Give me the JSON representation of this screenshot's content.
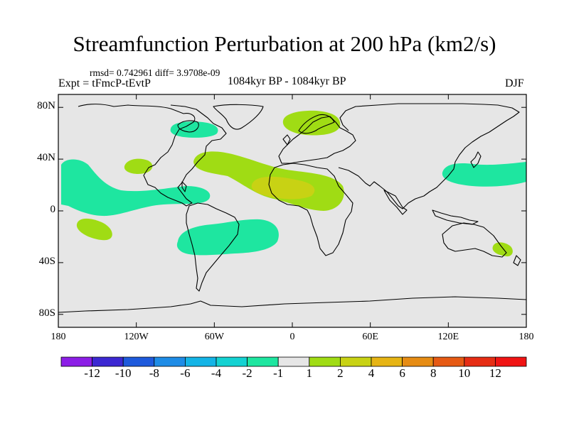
{
  "title": "Streamfunction Perturbation at 200 hPa (km2/s)",
  "stats_text": "rmsd= 0.742961 diff= 3.9708e-09",
  "expt_text": "Expt = tFmcP-tEvtP",
  "period_text": "1084kyr BP - 1084kyr BP",
  "season": "DJF",
  "axes": {
    "lat_labels": [
      "80N",
      "40N",
      "0",
      "40S",
      "80S"
    ],
    "lat_values": [
      80,
      40,
      0,
      -40,
      -80
    ],
    "lon_labels": [
      "180",
      "120W",
      "60W",
      "0",
      "60E",
      "120E",
      "180"
    ],
    "lon_values": [
      -180,
      -120,
      -60,
      0,
      60,
      120,
      180
    ],
    "lon_range": [
      -180,
      180
    ],
    "lat_range": [
      -90,
      90
    ]
  },
  "colorbar": {
    "labels": [
      "-12",
      "-10",
      "-8",
      "-6",
      "-4",
      "-2",
      "-1",
      "1",
      "2",
      "4",
      "6",
      "8",
      "10",
      "12"
    ],
    "colors": [
      "#8c1ee6",
      "#3c28d2",
      "#1e5adc",
      "#1e8ce6",
      "#14b4e6",
      "#14d2d2",
      "#1ee6a0",
      "#e6e6e6",
      "#a0dc14",
      "#c8d214",
      "#e6b414",
      "#e68c14",
      "#e65a14",
      "#e62d14",
      "#f01414"
    ]
  },
  "colors": {
    "land_sea_background": "#e6e6e6",
    "neg_1_2": "#1ee6a0",
    "pos_1_2": "#a0dc14",
    "pos_2_4": "#c8d214"
  },
  "map_features": {
    "positive_anomalies": [
      "N Atlantic / Sahara (2-4 core)",
      "Scandinavia",
      "Western US",
      "Australia",
      "Central Pacific SH"
    ],
    "negative_anomalies": [
      "Hudson Bay",
      "NE Pacific / Central America",
      "East Asia / NW Pacific",
      "South Atlantic / Brazil"
    ]
  }
}
